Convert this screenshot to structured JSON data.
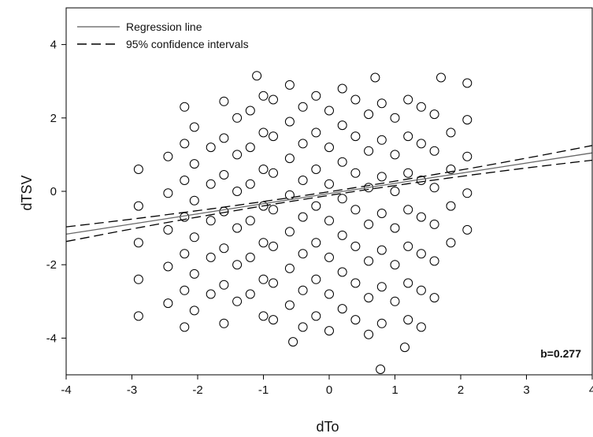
{
  "chart_data": {
    "type": "scatter",
    "title": "",
    "xlabel": "dTo",
    "ylabel": "dTSV",
    "xlim": [
      -4,
      4
    ],
    "ylim": [
      -5,
      5
    ],
    "x_ticks": [
      -4,
      -3,
      -2,
      -1,
      0,
      1,
      2,
      3,
      4
    ],
    "y_ticks": [
      -4,
      -2,
      0,
      2,
      4
    ],
    "x_tick_labels": [
      "-4",
      "-3",
      "-2",
      "-1",
      "0",
      "1",
      "2",
      "3",
      "4"
    ],
    "y_tick_labels": [
      "-4",
      "-2",
      "0",
      "2",
      "4"
    ],
    "grid": false,
    "legend_position": "top-left",
    "legend": [
      {
        "label": "Regression line",
        "style": "solid"
      },
      {
        "label": "95% confidence intervals",
        "style": "dashed"
      }
    ],
    "annotation": "b=0.277",
    "regression": {
      "slope": 0.277,
      "intercept": -0.06,
      "ci_halfwidth_at_mean": 0.05,
      "ci_halfwidth_at_edge": 0.2
    },
    "points": [
      [
        -2.9,
        0.6
      ],
      [
        -2.9,
        -0.4
      ],
      [
        -2.9,
        -1.4
      ],
      [
        -2.9,
        -2.4
      ],
      [
        -2.9,
        -3.4
      ],
      [
        -2.45,
        0.95
      ],
      [
        -2.45,
        -0.05
      ],
      [
        -2.45,
        -1.05
      ],
      [
        -2.45,
        -2.05
      ],
      [
        -2.45,
        -3.05
      ],
      [
        -2.2,
        2.3
      ],
      [
        -2.2,
        1.3
      ],
      [
        -2.2,
        0.3
      ],
      [
        -2.2,
        -0.7
      ],
      [
        -2.2,
        -1.7
      ],
      [
        -2.2,
        -2.7
      ],
      [
        -2.2,
        -3.7
      ],
      [
        -2.05,
        1.75
      ],
      [
        -2.05,
        0.75
      ],
      [
        -2.05,
        -0.25
      ],
      [
        -2.05,
        -1.25
      ],
      [
        -2.05,
        -2.25
      ],
      [
        -2.05,
        -3.25
      ],
      [
        -1.8,
        1.2
      ],
      [
        -1.8,
        0.2
      ],
      [
        -1.8,
        -0.8
      ],
      [
        -1.8,
        -1.8
      ],
      [
        -1.8,
        -2.8
      ],
      [
        -1.6,
        2.45
      ],
      [
        -1.6,
        1.45
      ],
      [
        -1.6,
        0.45
      ],
      [
        -1.6,
        -0.55
      ],
      [
        -1.6,
        -1.55
      ],
      [
        -1.6,
        -2.55
      ],
      [
        -1.6,
        -3.6
      ],
      [
        -1.4,
        2.0
      ],
      [
        -1.4,
        1.0
      ],
      [
        -1.4,
        0.0
      ],
      [
        -1.4,
        -1.0
      ],
      [
        -1.4,
        -2.0
      ],
      [
        -1.4,
        -3.0
      ],
      [
        -1.2,
        2.2
      ],
      [
        -1.2,
        1.2
      ],
      [
        -1.2,
        0.2
      ],
      [
        -1.2,
        -0.8
      ],
      [
        -1.2,
        -1.8
      ],
      [
        -1.2,
        -2.8
      ],
      [
        -1.1,
        3.15
      ],
      [
        -1.0,
        2.6
      ],
      [
        -1.0,
        1.6
      ],
      [
        -1.0,
        0.6
      ],
      [
        -1.0,
        -0.4
      ],
      [
        -1.0,
        -1.4
      ],
      [
        -1.0,
        -2.4
      ],
      [
        -1.0,
        -3.4
      ],
      [
        -0.85,
        2.5
      ],
      [
        -0.85,
        1.5
      ],
      [
        -0.85,
        0.5
      ],
      [
        -0.85,
        -0.5
      ],
      [
        -0.85,
        -1.5
      ],
      [
        -0.85,
        -2.5
      ],
      [
        -0.85,
        -3.5
      ],
      [
        -0.6,
        2.9
      ],
      [
        -0.6,
        1.9
      ],
      [
        -0.6,
        0.9
      ],
      [
        -0.6,
        -0.1
      ],
      [
        -0.6,
        -1.1
      ],
      [
        -0.6,
        -2.1
      ],
      [
        -0.6,
        -3.1
      ],
      [
        -0.55,
        -4.1
      ],
      [
        -0.4,
        2.3
      ],
      [
        -0.4,
        1.3
      ],
      [
        -0.4,
        0.3
      ],
      [
        -0.4,
        -0.7
      ],
      [
        -0.4,
        -1.7
      ],
      [
        -0.4,
        -2.7
      ],
      [
        -0.4,
        -3.7
      ],
      [
        -0.2,
        2.6
      ],
      [
        -0.2,
        1.6
      ],
      [
        -0.2,
        0.6
      ],
      [
        -0.2,
        -0.4
      ],
      [
        -0.2,
        -1.4
      ],
      [
        -0.2,
        -2.4
      ],
      [
        -0.2,
        -3.4
      ],
      [
        0.0,
        2.2
      ],
      [
        0.0,
        1.2
      ],
      [
        0.0,
        0.2
      ],
      [
        0.0,
        -0.8
      ],
      [
        0.0,
        -1.8
      ],
      [
        0.0,
        -2.8
      ],
      [
        0.0,
        -3.8
      ],
      [
        0.2,
        2.8
      ],
      [
        0.2,
        1.8
      ],
      [
        0.2,
        0.8
      ],
      [
        0.2,
        -0.2
      ],
      [
        0.2,
        -1.2
      ],
      [
        0.2,
        -2.2
      ],
      [
        0.2,
        -3.2
      ],
      [
        0.4,
        2.5
      ],
      [
        0.4,
        1.5
      ],
      [
        0.4,
        0.5
      ],
      [
        0.4,
        -0.5
      ],
      [
        0.4,
        -1.5
      ],
      [
        0.4,
        -2.5
      ],
      [
        0.4,
        -3.5
      ],
      [
        0.6,
        2.1
      ],
      [
        0.6,
        1.1
      ],
      [
        0.6,
        0.1
      ],
      [
        0.6,
        -0.9
      ],
      [
        0.6,
        -1.9
      ],
      [
        0.6,
        -2.9
      ],
      [
        0.6,
        -3.9
      ],
      [
        0.7,
        3.1
      ],
      [
        0.8,
        2.4
      ],
      [
        0.8,
        1.4
      ],
      [
        0.8,
        0.4
      ],
      [
        0.8,
        -0.6
      ],
      [
        0.8,
        -1.6
      ],
      [
        0.8,
        -2.6
      ],
      [
        0.8,
        -3.6
      ],
      [
        0.78,
        -4.85
      ],
      [
        1.0,
        2.0
      ],
      [
        1.0,
        1.0
      ],
      [
        1.0,
        0.0
      ],
      [
        1.0,
        -1.0
      ],
      [
        1.0,
        -2.0
      ],
      [
        1.0,
        -3.0
      ],
      [
        1.15,
        -4.25
      ],
      [
        1.2,
        2.5
      ],
      [
        1.2,
        1.5
      ],
      [
        1.2,
        0.5
      ],
      [
        1.2,
        -0.5
      ],
      [
        1.2,
        -1.5
      ],
      [
        1.2,
        -2.5
      ],
      [
        1.2,
        -3.5
      ],
      [
        1.4,
        2.3
      ],
      [
        1.4,
        1.3
      ],
      [
        1.4,
        0.3
      ],
      [
        1.4,
        -0.7
      ],
      [
        1.4,
        -1.7
      ],
      [
        1.4,
        -2.7
      ],
      [
        1.4,
        -3.7
      ],
      [
        1.7,
        3.1
      ],
      [
        1.6,
        2.1
      ],
      [
        1.6,
        1.1
      ],
      [
        1.6,
        0.1
      ],
      [
        1.6,
        -0.9
      ],
      [
        1.6,
        -1.9
      ],
      [
        1.6,
        -2.9
      ],
      [
        1.85,
        1.6
      ],
      [
        1.85,
        0.6
      ],
      [
        1.85,
        -0.4
      ],
      [
        1.85,
        -1.4
      ],
      [
        2.1,
        2.95
      ],
      [
        2.1,
        1.95
      ],
      [
        2.1,
        0.95
      ],
      [
        2.1,
        -0.05
      ],
      [
        2.1,
        -1.05
      ]
    ]
  }
}
